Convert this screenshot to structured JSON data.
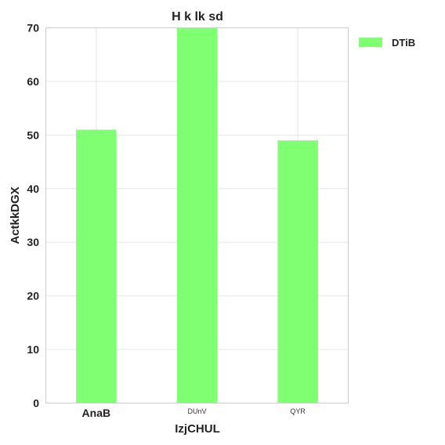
{
  "chart_data": {
    "type": "bar",
    "title": "H k lk sd",
    "xlabel": "IzjCHUL",
    "ylabel": "ActkkDGX",
    "categories": [
      "AnaB",
      "DUnV",
      "QYR"
    ],
    "series": [
      {
        "name": "DTiB",
        "values": [
          51,
          70,
          49
        ]
      }
    ],
    "ylim": [
      0,
      70
    ],
    "yticks": [
      0,
      10,
      20,
      30,
      40,
      50,
      60,
      70
    ],
    "grid": true,
    "legend": "top-right outside",
    "colors": {
      "bar": "#80ff72"
    }
  }
}
